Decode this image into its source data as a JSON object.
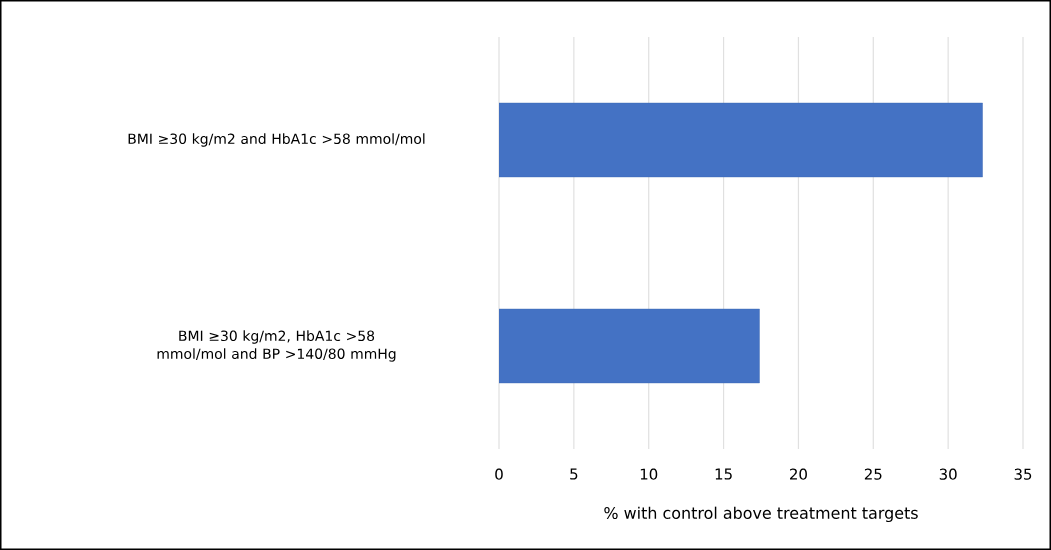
{
  "chart_data": {
    "type": "bar",
    "orientation": "horizontal",
    "xlabel": "% with control above treatment targets",
    "categories": [
      "BMI ≥30 kg/m2 and HbA1c >58 mmol/mol",
      "BMI ≥30 kg/m2, HbA1c >58 mmol/mol  and BP >140/80 mmHg"
    ],
    "values": [
      32.3,
      17.4
    ],
    "color": "#4472c4",
    "xlim": [
      0,
      35
    ],
    "xticks": [
      0,
      5,
      10,
      15,
      20,
      25,
      30,
      35
    ],
    "grid": "x"
  }
}
